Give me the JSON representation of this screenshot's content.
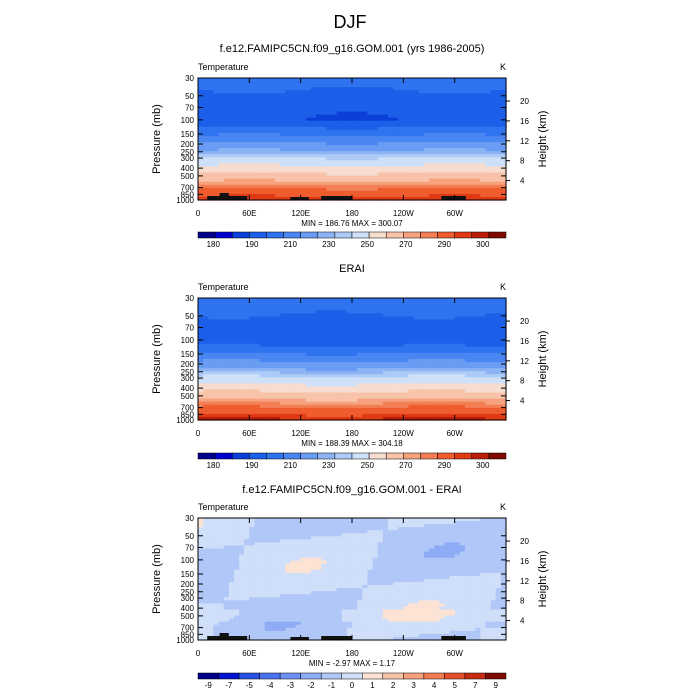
{
  "figure": {
    "title": "DJF",
    "variable_label": "Temperature",
    "unit_label": "K"
  },
  "chart_data": [
    {
      "type": "heatmap",
      "title": "f.e12.FAMIPC5CN.f09_g16.GOM.001 (yrs 1986-2005)",
      "left_label": "Temperature",
      "right_label": "K",
      "xlabel": "",
      "ylabel": "Pressure (mb)",
      "ylabel_right": "Height (km)",
      "x_tick_labels": [
        "0",
        "60E",
        "120E",
        "180",
        "120W",
        "60W"
      ],
      "y_tick_labels": [
        "30",
        "50",
        "70",
        "100",
        "150",
        "200",
        "250",
        "300",
        "400",
        "500",
        "700",
        "850",
        "1000"
      ],
      "y_right_tick_labels": [
        "20",
        "16",
        "12",
        "8",
        "4"
      ],
      "stats": "MIN = 186.76  MAX = 300.07",
      "colorbar_labels": [
        "180",
        "190",
        "210",
        "230",
        "250",
        "270",
        "290",
        "300"
      ],
      "field": "model_temperature"
    },
    {
      "type": "heatmap",
      "title": "ERAI",
      "left_label": "Temperature",
      "right_label": "K",
      "xlabel": "",
      "ylabel": "Pressure (mb)",
      "ylabel_right": "Height (km)",
      "x_tick_labels": [
        "0",
        "60E",
        "120E",
        "180",
        "120W",
        "60W"
      ],
      "y_tick_labels": [
        "30",
        "50",
        "70",
        "100",
        "150",
        "200",
        "250",
        "300",
        "400",
        "500",
        "700",
        "850",
        "1000"
      ],
      "y_right_tick_labels": [
        "20",
        "16",
        "12",
        "8",
        "4"
      ],
      "stats": "MIN = 188.39  MAX = 304.18",
      "colorbar_labels": [
        "180",
        "190",
        "210",
        "230",
        "250",
        "270",
        "290",
        "300"
      ],
      "field": "obs_temperature"
    },
    {
      "type": "heatmap",
      "title": "f.e12.FAMIPC5CN.f09_g16.GOM.001 - ERAI",
      "left_label": "Temperature",
      "right_label": "K",
      "xlabel": "",
      "ylabel": "Pressure (mb)",
      "ylabel_right": "Height (km)",
      "x_tick_labels": [
        "0",
        "60E",
        "120E",
        "180",
        "120W",
        "60W"
      ],
      "y_tick_labels": [
        "30",
        "50",
        "70",
        "100",
        "150",
        "200",
        "250",
        "300",
        "400",
        "500",
        "700",
        "850",
        "1000"
      ],
      "y_right_tick_labels": [
        "20",
        "16",
        "12",
        "8",
        "4"
      ],
      "stats": "MIN = -2.97  MAX =  1.17",
      "colorbar_labels": [
        "-9",
        "-7",
        "-5",
        "-4",
        "-3",
        "-2",
        "-1",
        "0",
        "1",
        "2",
        "3",
        "4",
        "5",
        "7",
        "9"
      ],
      "field": "difference"
    }
  ],
  "colors": {
    "temp_levels": [
      "#00008b",
      "#0000cd",
      "#0a3fd8",
      "#1c5fe8",
      "#2f73f0",
      "#4a86f2",
      "#6a9cf3",
      "#8cb4f5",
      "#aecbf7",
      "#cfe0f9",
      "#f6ddcf",
      "#f8c3a8",
      "#f6a27e",
      "#f37f55",
      "#ef5c2e",
      "#e03a14",
      "#b81e08",
      "#7f0a00"
    ],
    "diff_levels": [
      "#00008b",
      "#0014d0",
      "#2650e6",
      "#4a72ee",
      "#6e90f2",
      "#8eacf5",
      "#b0c7f8",
      "#cfdef9",
      "#fde3d4",
      "#f9c3a8",
      "#f6a07d",
      "#f27a52",
      "#e6502b",
      "#c42b10",
      "#7f0a00"
    ],
    "terrain": "#111111"
  }
}
